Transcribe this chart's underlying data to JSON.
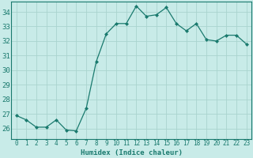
{
  "x": [
    0,
    1,
    2,
    3,
    4,
    5,
    6,
    7,
    8,
    9,
    10,
    11,
    12,
    13,
    14,
    15,
    16,
    17,
    18,
    19,
    20,
    21,
    22,
    23
  ],
  "y": [
    26.9,
    26.6,
    26.1,
    26.1,
    26.6,
    25.9,
    25.85,
    27.4,
    30.6,
    32.5,
    33.2,
    33.2,
    34.4,
    33.7,
    33.8,
    34.3,
    33.2,
    32.7,
    33.2,
    32.1,
    32.0,
    32.4,
    32.4,
    31.8
  ],
  "line_color": "#1a7a6e",
  "marker": "D",
  "marker_size": 2.0,
  "bg_color": "#c8ebe8",
  "grid_color": "#aad4ce",
  "xlabel": "Humidex (Indice chaleur)",
  "ylim": [
    25.3,
    34.7
  ],
  "xlim": [
    -0.5,
    23.5
  ],
  "yticks": [
    26,
    27,
    28,
    29,
    30,
    31,
    32,
    33,
    34
  ],
  "xticks": [
    0,
    1,
    2,
    3,
    4,
    5,
    6,
    7,
    8,
    9,
    10,
    11,
    12,
    13,
    14,
    15,
    16,
    17,
    18,
    19,
    20,
    21,
    22,
    23
  ],
  "xlabel_fontsize": 6.5,
  "ytick_fontsize": 6.5,
  "xtick_fontsize": 5.5,
  "linewidth": 0.9
}
